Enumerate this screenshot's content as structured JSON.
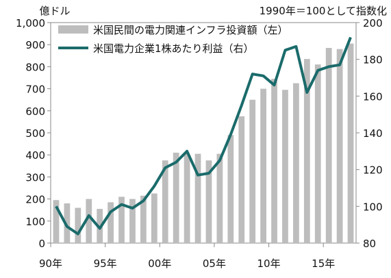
{
  "chart_data": {
    "type": "bar+line",
    "left_unit": "億ドル",
    "right_note": "1990年＝100として指数化",
    "legend": [
      {
        "name": "米国民間の電力関連インフラ投資額（左）",
        "color": "#bdbdbd"
      },
      {
        "name": "米国電力企業1株あたり利益（右）",
        "color": "#1b6b6b"
      }
    ],
    "x_tick_labels": [
      "90年",
      "95年",
      "00年",
      "05年",
      "10年",
      "15年"
    ],
    "left_ticks": [
      "0",
      "100",
      "200",
      "300",
      "400",
      "500",
      "600",
      "700",
      "800",
      "900",
      "1,000"
    ],
    "right_ticks": [
      "80",
      "100",
      "120",
      "140",
      "160",
      "180",
      "200"
    ],
    "ylim_left": [
      0,
      1000
    ],
    "ylim_right": [
      80,
      200
    ],
    "years": [
      1990,
      1991,
      1992,
      1993,
      1994,
      1995,
      1996,
      1997,
      1998,
      1999,
      2000,
      2001,
      2002,
      2003,
      2004,
      2005,
      2006,
      2007,
      2008,
      2009,
      2010,
      2011,
      2012,
      2013,
      2014,
      2015,
      2016,
      2017
    ],
    "investment": [
      195,
      180,
      160,
      200,
      155,
      185,
      210,
      200,
      215,
      225,
      375,
      410,
      405,
      405,
      375,
      405,
      490,
      575,
      650,
      700,
      745,
      695,
      725,
      835,
      810,
      885,
      880,
      905
    ],
    "eps_index": [
      100,
      89,
      85,
      95,
      88,
      97,
      101,
      99,
      103,
      111,
      121,
      124,
      130,
      117,
      118,
      125,
      139,
      155,
      172,
      171,
      166,
      185,
      187,
      162,
      174,
      176,
      177,
      192
    ]
  }
}
